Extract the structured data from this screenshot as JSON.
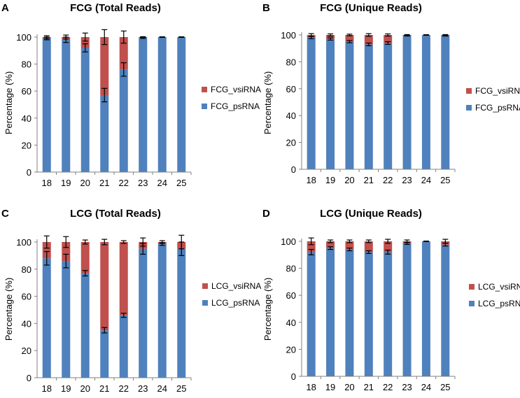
{
  "colors": {
    "psRNA": "#4f81bd",
    "vsiRNA": "#c0504d",
    "axis": "#808080",
    "text": "#000000",
    "errbar": "#000000"
  },
  "chart_data": [
    {
      "panel": "A",
      "type": "bar",
      "stacked": true,
      "title": "FCG (Total Reads)",
      "ylabel": "Percentage (%)",
      "xlabel": "",
      "ylim": [
        0,
        100
      ],
      "yticks": [
        "0",
        "20",
        "40",
        "60",
        "80",
        "100"
      ],
      "categories": [
        "18",
        "19",
        "20",
        "21",
        "22",
        "23",
        "24",
        "25"
      ],
      "series": [
        {
          "name": "FCG_psRNA",
          "color_key": "psRNA",
          "values": [
            99,
            98,
            92,
            57,
            76,
            99.5,
            100,
            100
          ],
          "errors": [
            1,
            2,
            3,
            5,
            5,
            0.5,
            0.2,
            0.2
          ]
        },
        {
          "name": "FCG_vsiRNA",
          "color_key": "vsiRNA",
          "values": [
            1,
            2,
            8,
            43,
            24,
            0.5,
            0,
            0
          ],
          "errors": [
            1,
            1.5,
            3,
            5.5,
            4.5,
            0.3,
            0.2,
            0.2
          ]
        }
      ],
      "legend": [
        "FCG_vsiRNA",
        "FCG_psRNA"
      ]
    },
    {
      "panel": "B",
      "type": "bar",
      "stacked": true,
      "title": "FCG (Unique Reads)",
      "ylabel": "Percentage (%)",
      "xlabel": "",
      "ylim": [
        0,
        100
      ],
      "yticks": [
        "0",
        "20",
        "40",
        "60",
        "80",
        "100"
      ],
      "categories": [
        "18",
        "19",
        "20",
        "21",
        "22",
        "23",
        "24",
        "25"
      ],
      "series": [
        {
          "name": "FCG_psRNA",
          "color_key": "psRNA",
          "values": [
            98,
            97,
            95,
            93,
            94,
            99.5,
            100,
            99.5
          ],
          "errors": [
            0.8,
            0.8,
            0.8,
            1,
            1,
            0.3,
            0.2,
            0.3
          ]
        },
        {
          "name": "FCG_vsiRNA",
          "color_key": "vsiRNA",
          "values": [
            2,
            3,
            5,
            7,
            6,
            0.5,
            0,
            0.5
          ],
          "errors": [
            1,
            0.8,
            0.6,
            1,
            0.8,
            0.3,
            0.2,
            0.3
          ]
        }
      ],
      "legend": [
        "FCG_vsiRNA",
        "FCG_psRNA"
      ]
    },
    {
      "panel": "C",
      "type": "bar",
      "stacked": true,
      "title": "LCG (Total Reads)",
      "ylabel": "Percentage (%)",
      "xlabel": "",
      "ylim": [
        0,
        100
      ],
      "yticks": [
        "0",
        "20",
        "40",
        "60",
        "80",
        "100"
      ],
      "categories": [
        "18",
        "19",
        "20",
        "21",
        "22",
        "23",
        "24",
        "25"
      ],
      "series": [
        {
          "name": "LCG_psRNA",
          "color_key": "psRNA",
          "values": [
            88,
            86,
            77,
            35,
            46,
            95,
            98.5,
            95
          ],
          "errors": [
            5,
            5,
            2,
            2,
            1.5,
            4,
            1,
            5
          ]
        },
        {
          "name": "LCG_vsiRNA",
          "color_key": "vsiRNA",
          "values": [
            12,
            14,
            23,
            65,
            54,
            5,
            1.5,
            5
          ],
          "errors": [
            4.5,
            4,
            1.5,
            2,
            1,
            3,
            1,
            5
          ]
        }
      ],
      "legend": [
        "LCG_vsiRNA",
        "LCG_psRNA"
      ]
    },
    {
      "panel": "D",
      "type": "bar",
      "stacked": true,
      "title": "LCG (Unique Reads)",
      "ylabel": "Percentage (%)",
      "xlabel": "",
      "ylim": [
        0,
        100
      ],
      "yticks": [
        "0",
        "20",
        "40",
        "60",
        "80",
        "100"
      ],
      "categories": [
        "18",
        "19",
        "20",
        "21",
        "22",
        "23",
        "24",
        "25"
      ],
      "series": [
        {
          "name": "LCG_psRNA",
          "color_key": "psRNA",
          "values": [
            92,
            95,
            94,
            92,
            92,
            98.5,
            100,
            97.5
          ],
          "errors": [
            2,
            1,
            1,
            1,
            1.5,
            0.8,
            0.2,
            1
          ]
        },
        {
          "name": "LCG_vsiRNA",
          "color_key": "vsiRNA",
          "values": [
            8,
            5,
            6,
            8,
            8,
            1.5,
            0,
            2.5
          ],
          "errors": [
            2.5,
            1,
            1,
            1,
            1.5,
            1,
            0.2,
            1.5
          ]
        }
      ],
      "legend": [
        "LCG_vsiRNA",
        "LCG_psRNA"
      ]
    }
  ]
}
